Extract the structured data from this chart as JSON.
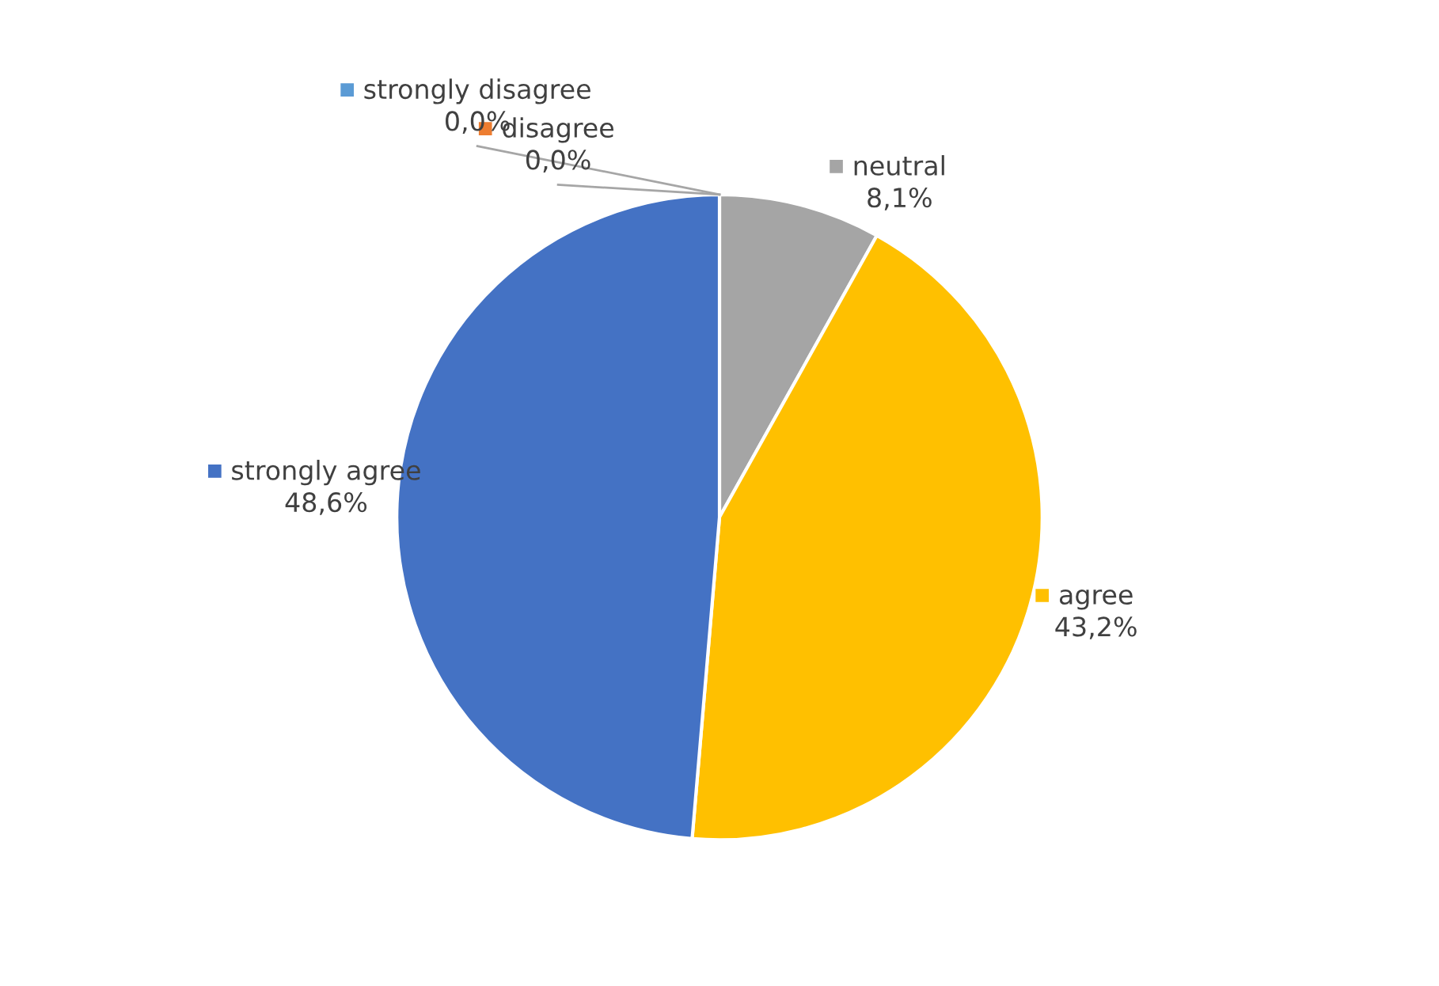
{
  "chart_data": {
    "type": "pie",
    "categories": [
      "strongly disagree",
      "disagree",
      "neutral",
      "agree",
      "strongly agree"
    ],
    "values": [
      0.0,
      0.0,
      8.1,
      43.2,
      48.6
    ],
    "value_labels": [
      "0,0%",
      "0,0%",
      "8,1%",
      "43,2%",
      "48,6%"
    ],
    "colors": [
      "#5b9bd5",
      "#ed7d31",
      "#a5a5a5",
      "#ffc000",
      "#4472c4"
    ],
    "legend": true
  }
}
